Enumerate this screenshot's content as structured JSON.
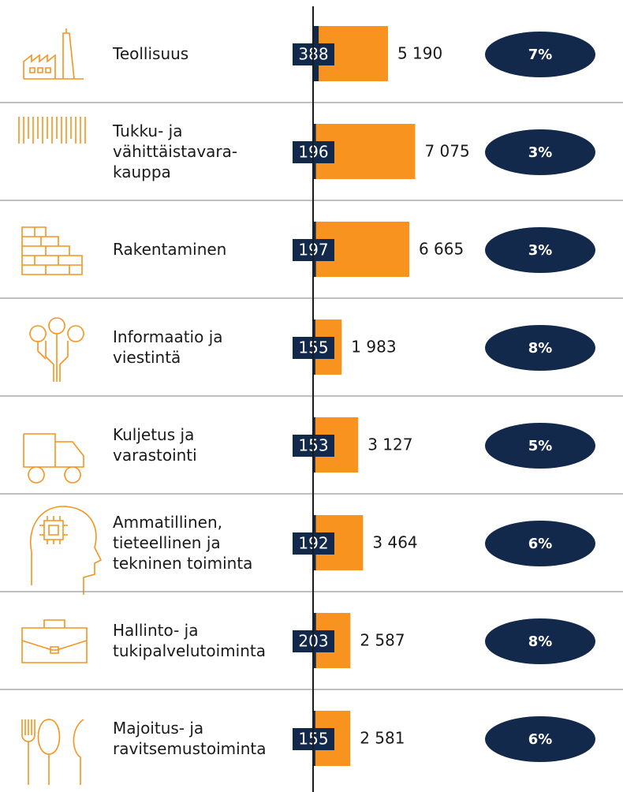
{
  "chart_data": {
    "type": "bar",
    "categories": [
      "Teollisuus",
      "Tukku- ja\nvähittäistavara-\nkauppa",
      "Rakentaminen",
      "Informaatio ja\nviestintä",
      "Kuljetus ja\nvarastointi",
      "Ammatillinen,\ntieteellinen ja\ntekninen toiminta",
      "Hallinto- ja\ntukipalvelutoiminta",
      "Majoitus- ja\nravitsemustoiminta"
    ],
    "series": [
      {
        "color": "#f7931e",
        "values": [
          5190,
          7075,
          6665,
          1983,
          3127,
          3464,
          2587,
          2581
        ],
        "value_labels": [
          "5 190",
          "7 075",
          "6 665",
          "1 983",
          "3 127",
          "3 464",
          "2 587",
          "2 581"
        ]
      },
      {
        "color": "#13294b",
        "values": [
          388,
          196,
          197,
          155,
          153,
          192,
          203,
          155
        ]
      }
    ],
    "shares": [
      7,
      3,
      3,
      8,
      5,
      6,
      8,
      6
    ],
    "share_labels": [
      "7%",
      "3%",
      "3%",
      "8%",
      "5%",
      "6%",
      "8%",
      "6%"
    ],
    "xlim": [
      0,
      10000
    ]
  }
}
